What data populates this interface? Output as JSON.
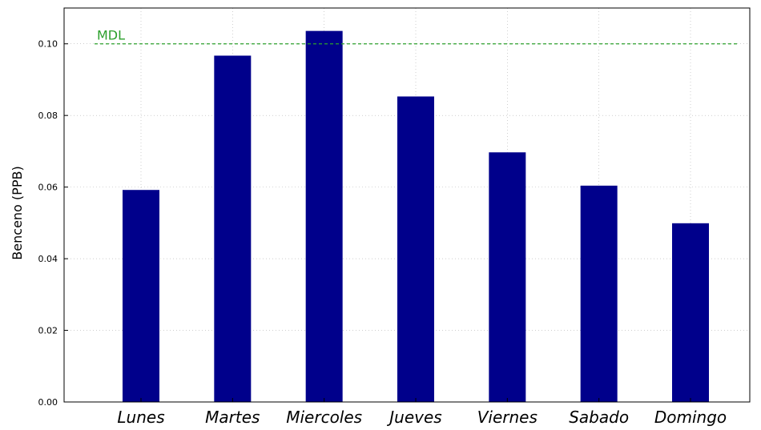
{
  "chart_data": {
    "type": "bar",
    "categories": [
      "Lunes",
      "Martes",
      "Miercoles",
      "Jueves",
      "Viernes",
      "Sabado",
      "Domingo"
    ],
    "values": [
      0.0592,
      0.0967,
      0.1036,
      0.0853,
      0.0697,
      0.0604,
      0.0499
    ],
    "ylabel": "Benceno (PPB)",
    "xlabel": "",
    "ylim": [
      0.0,
      0.11
    ],
    "yticks": [
      "0.00",
      "0.02",
      "0.04",
      "0.06",
      "0.08",
      "0.10"
    ],
    "grid": true,
    "bar_color": "#00008b",
    "reference_line": {
      "label": "MDL",
      "value": 0.1,
      "color": "#2ca02c",
      "style": "dashed"
    }
  }
}
